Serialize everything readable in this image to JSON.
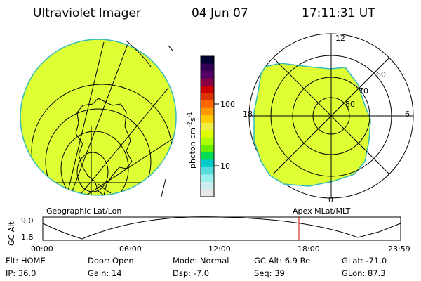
{
  "header": {
    "instrument": "Ultraviolet Imager",
    "date": "04 Jun 07",
    "time": "17:11:31 UT"
  },
  "colorbar": {
    "unit_label": "photon cm",
    "unit_sup1": "-2",
    "unit_mid": "s",
    "unit_sup2": "-1",
    "ticks": [
      "100",
      "10"
    ],
    "colors": [
      "#000033",
      "#330055",
      "#550066",
      "#880044",
      "#cc0000",
      "#dd3300",
      "#ff6600",
      "#ff9900",
      "#ffcc00",
      "#eeee44",
      "#ddff00",
      "#aaff00",
      "#66ee00",
      "#00dd55",
      "#00cccc",
      "#55dddd",
      "#99eeee",
      "#cceeee",
      "#e8e8e8"
    ]
  },
  "left_map": {
    "caption": "Geographic Lat/Lon",
    "fill_color": "#ddff33"
  },
  "right_polar": {
    "caption": "Apex MLat/MLT",
    "mlt_labels": {
      "top": "12",
      "bottom": "0",
      "left": "18",
      "right": "6"
    },
    "lat_labels": [
      "60",
      "70",
      "80"
    ],
    "fill_color": "#ddff33"
  },
  "timeline": {
    "y_label": "GC Alt",
    "y_ticks": [
      "9.0",
      "1.8"
    ],
    "x_ticks": [
      "00:00",
      "06:00",
      "12:00",
      "18:00",
      "23:59"
    ],
    "current_marker_color": "#cc0000"
  },
  "status": {
    "flt": "Flt: HOME",
    "ip": "IP: 36.0",
    "door": "Door: Open",
    "gain": "Gain: 14",
    "mode": "Mode: Normal",
    "dsp": "Dsp:    -7.0",
    "gc_alt": "GC Alt: 6.9 Re",
    "seq": "Seq: 39",
    "glat": "GLat: -71.0",
    "glon": "GLon:  87.3"
  }
}
